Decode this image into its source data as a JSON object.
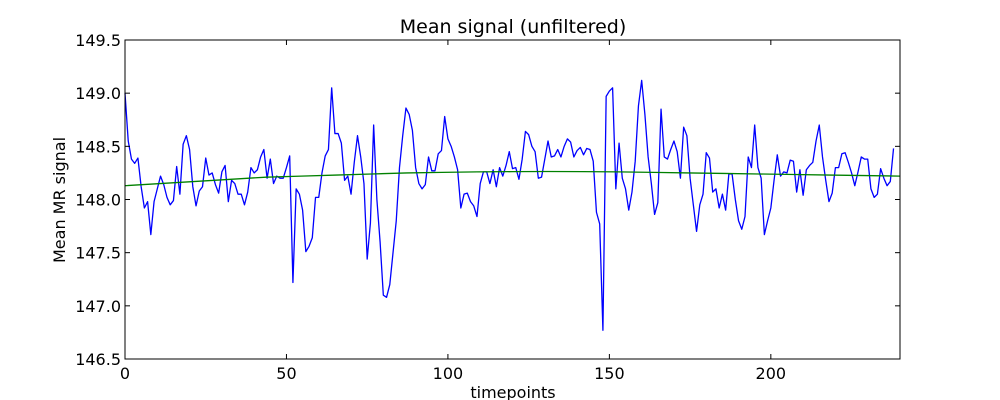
{
  "chart_data": {
    "type": "line",
    "title": "Mean signal (unfiltered)",
    "xlabel": "timepoints",
    "ylabel": "Mean MR signal",
    "xlim": [
      0,
      240
    ],
    "ylim": [
      146.5,
      149.5
    ],
    "grid": false,
    "x_ticks": [
      0,
      50,
      100,
      150,
      200
    ],
    "x_tick_labels": [
      "0",
      "50",
      "100",
      "150",
      "200"
    ],
    "y_ticks": [
      146.5,
      147.0,
      147.5,
      148.0,
      148.5,
      149.0,
      149.5
    ],
    "y_tick_labels": [
      "146.5",
      "147.0",
      "147.5",
      "148.0",
      "148.5",
      "149.0",
      "149.5"
    ],
    "series": [
      {
        "color": "#0000ff",
        "x_start": 0,
        "x_step": 1,
        "values": [
          149.0,
          148.55,
          148.38,
          148.34,
          148.39,
          148.12,
          147.92,
          147.98,
          147.67,
          147.98,
          148.1,
          148.22,
          148.14,
          148.02,
          147.95,
          147.99,
          148.31,
          148.05,
          148.52,
          148.6,
          148.47,
          148.12,
          147.94,
          148.08,
          148.12,
          148.39,
          148.23,
          148.25,
          148.14,
          148.06,
          148.26,
          148.32,
          147.98,
          148.18,
          148.15,
          148.05,
          148.05,
          147.95,
          148.07,
          148.3,
          148.25,
          148.28,
          148.4,
          148.47,
          148.2,
          148.38,
          148.15,
          148.22,
          148.2,
          148.2,
          148.3,
          148.41,
          147.22,
          148.1,
          148.05,
          147.9,
          147.51,
          147.56,
          147.64,
          148.02,
          148.02,
          148.25,
          148.41,
          148.47,
          149.05,
          148.62,
          148.62,
          148.53,
          148.18,
          148.22,
          148.05,
          148.35,
          148.6,
          148.4,
          148.15,
          147.44,
          147.78,
          148.7,
          148.0,
          147.6,
          147.1,
          147.08,
          147.2,
          147.5,
          147.8,
          148.3,
          148.6,
          148.86,
          148.8,
          148.65,
          148.3,
          148.15,
          148.1,
          148.14,
          148.4,
          148.27,
          148.27,
          148.43,
          148.46,
          148.78,
          148.57,
          148.5,
          148.4,
          148.28,
          147.92,
          148.05,
          148.06,
          147.98,
          147.94,
          147.84,
          148.15,
          148.26,
          148.26,
          148.15,
          148.28,
          148.12,
          148.3,
          148.22,
          148.32,
          148.45,
          148.29,
          148.3,
          148.19,
          148.38,
          148.64,
          148.61,
          148.5,
          148.45,
          148.2,
          148.21,
          148.38,
          148.55,
          148.4,
          148.41,
          148.47,
          148.4,
          148.5,
          148.57,
          148.54,
          148.4,
          148.46,
          148.49,
          148.42,
          148.48,
          148.47,
          148.36,
          147.88,
          147.77,
          146.77,
          148.97,
          149.02,
          149.05,
          148.1,
          148.53,
          148.2,
          148.1,
          147.9,
          148.07,
          148.36,
          148.88,
          149.12,
          148.8,
          148.4,
          148.15,
          147.86,
          147.97,
          148.85,
          148.4,
          148.38,
          148.47,
          148.55,
          148.45,
          148.2,
          148.68,
          148.6,
          148.2,
          147.95,
          147.7,
          147.95,
          148.05,
          148.44,
          148.39,
          148.07,
          148.1,
          147.92,
          148.05,
          147.9,
          148.24,
          148.24,
          148.0,
          147.8,
          147.72,
          147.84,
          148.4,
          148.3,
          148.7,
          148.3,
          148.2,
          147.67,
          147.8,
          147.92,
          148.18,
          148.42,
          148.22,
          148.26,
          148.25,
          148.37,
          148.36,
          148.07,
          148.28,
          148.04,
          148.28,
          148.32,
          148.35,
          148.55,
          148.7,
          148.4,
          148.18,
          147.98,
          148.06,
          148.3,
          148.3,
          148.43,
          148.44,
          148.35,
          148.25,
          148.13,
          148.26,
          148.4,
          148.38,
          148.38,
          148.1,
          148.02,
          148.05,
          148.29,
          148.2,
          148.13,
          148.17,
          148.48
        ]
      },
      {
        "color": "#008000",
        "x_start": 0,
        "x_step": 1,
        "values": [
          148.13,
          148.15,
          148.17,
          148.19,
          148.21,
          148.22,
          148.23,
          148.24,
          148.25,
          148.255,
          148.26,
          148.262,
          148.263,
          148.262,
          148.26,
          148.255,
          148.25,
          148.245,
          148.24,
          148.235,
          148.23,
          148.225,
          148.22
        ]
      }
    ]
  }
}
